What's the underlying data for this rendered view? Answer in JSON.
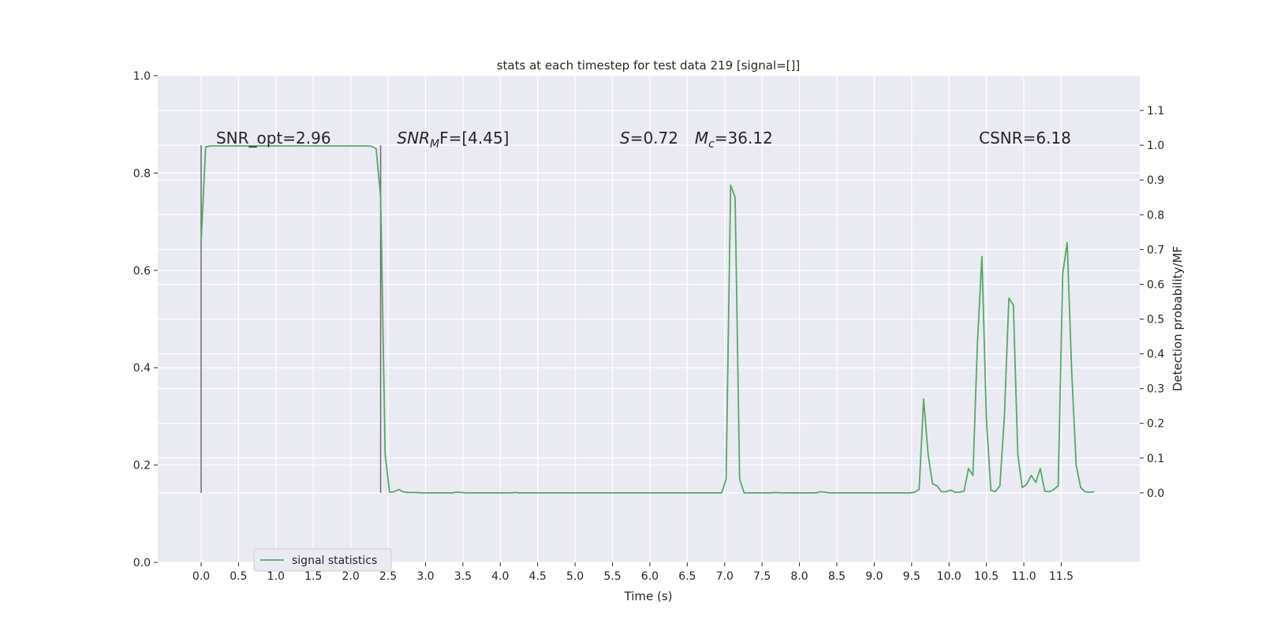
{
  "chart_data": {
    "type": "line",
    "title": "stats at each timestep for test data 219 [signal=[]]",
    "xlabel": "Time (s)",
    "ylabel_left": "",
    "ylabel_right": "Detection probability/MF",
    "xlim": [
      -0.58,
      12.55
    ],
    "ylim_left": [
      0.0,
      1.0
    ],
    "ylim_right": [
      -0.2,
      1.2
    ],
    "x_ticks": [
      "0.0",
      "0.5",
      "1.0",
      "1.5",
      "2.0",
      "2.5",
      "3.0",
      "3.5",
      "4.0",
      "4.5",
      "5.0",
      "5.5",
      "6.0",
      "6.5",
      "7.0",
      "7.5",
      "8.0",
      "8.5",
      "9.0",
      "9.5",
      "10.0",
      "10.5",
      "11.0",
      "11.5"
    ],
    "x_tick_values": [
      0.0,
      0.5,
      1.0,
      1.5,
      2.0,
      2.5,
      3.0,
      3.5,
      4.0,
      4.5,
      5.0,
      5.5,
      6.0,
      6.5,
      7.0,
      7.5,
      8.0,
      8.5,
      9.0,
      9.5,
      10.0,
      10.5,
      11.0,
      11.5
    ],
    "y_left_ticks": [
      "0.0",
      "0.2",
      "0.4",
      "0.6",
      "0.8",
      "1.0"
    ],
    "y_left_tick_values": [
      0.0,
      0.2,
      0.4,
      0.6,
      0.8,
      1.0
    ],
    "y_right_ticks": [
      "0.0",
      "0.1",
      "0.2",
      "0.3",
      "0.4",
      "0.5",
      "0.6",
      "0.7",
      "0.8",
      "0.9",
      "1.0",
      "1.1"
    ],
    "y_right_tick_values": [
      0.0,
      0.1,
      0.2,
      0.3,
      0.4,
      0.5,
      0.6,
      0.7,
      0.8,
      0.9,
      1.0,
      1.1
    ],
    "grid": true,
    "legend_placement": "lower-left",
    "series": [
      {
        "name": "signal statistics",
        "axis": "right",
        "color": "#55a868",
        "x": [
          0.0,
          0.06,
          0.12,
          0.18,
          0.24,
          0.3,
          0.36,
          0.42,
          0.48,
          0.54,
          0.6,
          0.66,
          0.72,
          0.78,
          0.84,
          0.9,
          0.96,
          1.02,
          1.08,
          1.14,
          1.2,
          1.26,
          1.32,
          1.38,
          1.44,
          1.5,
          1.56,
          1.62,
          1.68,
          1.74,
          1.8,
          1.86,
          1.92,
          1.98,
          2.04,
          2.1,
          2.16,
          2.22,
          2.28,
          2.34,
          2.4,
          2.46,
          2.52,
          2.58,
          2.64,
          2.7,
          2.76,
          2.82,
          2.88,
          2.94,
          3.0,
          3.06,
          3.12,
          3.18,
          3.24,
          3.3,
          3.36,
          3.42,
          3.48,
          3.54,
          3.6,
          3.66,
          3.72,
          3.78,
          3.84,
          3.9,
          3.96,
          4.02,
          4.08,
          4.14,
          4.2,
          4.26,
          4.32,
          4.38,
          4.44,
          4.5,
          4.56,
          4.62,
          4.68,
          4.74,
          4.8,
          4.86,
          4.92,
          4.98,
          5.04,
          5.1,
          5.16,
          5.22,
          5.28,
          5.34,
          5.4,
          5.46,
          5.52,
          5.58,
          5.64,
          5.7,
          5.76,
          5.82,
          5.88,
          5.94,
          6.0,
          6.06,
          6.12,
          6.18,
          6.24,
          6.3,
          6.36,
          6.42,
          6.48,
          6.54,
          6.6,
          6.66,
          6.72,
          6.78,
          6.84,
          6.9,
          6.96,
          7.02,
          7.08,
          7.14,
          7.2,
          7.26,
          7.32,
          7.38,
          7.44,
          7.5,
          7.56,
          7.62,
          7.68,
          7.74,
          7.8,
          7.86,
          7.92,
          7.98,
          8.04,
          8.1,
          8.16,
          8.22,
          8.28,
          8.34,
          8.4,
          8.46,
          8.52,
          8.58,
          8.64,
          8.7,
          8.76,
          8.82,
          8.88,
          8.94,
          9.0,
          9.06,
          9.12,
          9.18,
          9.24,
          9.3,
          9.36,
          9.42,
          9.48,
          9.54,
          9.6,
          9.66,
          9.72,
          9.78,
          9.84,
          9.9,
          9.96,
          10.02,
          10.08,
          10.14,
          10.2,
          10.26,
          10.32,
          10.38,
          10.44,
          10.5,
          10.56,
          10.62,
          10.68,
          10.74,
          10.8,
          10.86,
          10.92,
          10.98,
          11.04,
          11.1,
          11.16,
          11.22,
          11.28,
          11.34,
          11.4,
          11.46,
          11.52,
          11.58,
          11.64,
          11.7,
          11.76,
          11.82,
          11.88,
          11.94
        ],
        "y": [
          0.72,
          0.995,
          0.998,
          0.998,
          0.998,
          0.998,
          0.998,
          0.998,
          0.998,
          0.998,
          0.998,
          0.998,
          0.998,
          0.998,
          0.998,
          0.998,
          0.998,
          0.998,
          0.998,
          0.998,
          0.998,
          0.998,
          0.998,
          0.998,
          0.998,
          0.998,
          0.998,
          0.998,
          0.998,
          0.998,
          0.998,
          0.998,
          0.998,
          0.998,
          0.998,
          0.998,
          0.998,
          0.998,
          0.997,
          0.99,
          0.85,
          0.11,
          0.002,
          0.003,
          0.01,
          0.003,
          0.001,
          0.001,
          0.001,
          0.0,
          0.0,
          0.0,
          0.0,
          0.0,
          0.0,
          0.0,
          0.0,
          0.002,
          0.001,
          0.0,
          0.0,
          0.0,
          0.0,
          0.0,
          0.0,
          0.0,
          0.0,
          0.0,
          0.0,
          0.0,
          0.001,
          0.0,
          0.0,
          0.0,
          0.0,
          0.0,
          0.0,
          0.0,
          0.0,
          0.0,
          0.0,
          0.0,
          0.0,
          0.0,
          0.0,
          0.0,
          0.0,
          0.0,
          0.0,
          0.0,
          0.0,
          0.0,
          0.0,
          0.0,
          0.0,
          0.0,
          0.0,
          0.0,
          0.0,
          0.0,
          0.0,
          0.0,
          0.0,
          0.0,
          0.0,
          0.0,
          0.0,
          0.0,
          0.0,
          0.0,
          0.0,
          0.0,
          0.0,
          0.0,
          0.0,
          0.0,
          0.0,
          0.04,
          0.885,
          0.85,
          0.04,
          0.0,
          0.0,
          0.0,
          0.0,
          0.0,
          0.0,
          0.0,
          0.001,
          0.0,
          0.0,
          0.0,
          0.0,
          0.0,
          0.0,
          0.0,
          0.0,
          0.0,
          0.003,
          0.002,
          0.0,
          0.0,
          0.0,
          0.0,
          0.0,
          0.0,
          0.0,
          0.0,
          0.0,
          0.0,
          0.0,
          0.0,
          0.0,
          0.0,
          0.0,
          0.0,
          0.0,
          0.0,
          0.0,
          0.002,
          0.01,
          0.27,
          0.11,
          0.026,
          0.02,
          0.003,
          0.003,
          0.008,
          0.002,
          0.002,
          0.005,
          0.07,
          0.05,
          0.43,
          0.68,
          0.21,
          0.007,
          0.004,
          0.02,
          0.22,
          0.56,
          0.54,
          0.11,
          0.015,
          0.025,
          0.05,
          0.03,
          0.07,
          0.005,
          0.003,
          0.01,
          0.02,
          0.63,
          0.72,
          0.35,
          0.08,
          0.015,
          0.003,
          0.002,
          0.003
        ]
      }
    ],
    "vlines": [
      {
        "x": 0.0,
        "y_from": 0.0,
        "y_to": 1.0,
        "color": "#6b6b6b"
      },
      {
        "x": 2.4,
        "y_from": 0.0,
        "y_to": 1.0,
        "color": "#6b6b6b"
      }
    ],
    "annotations": [
      {
        "text": "SNR_opt=2.96",
        "x": 0.2,
        "y": 1.0
      },
      {
        "text_main": "SNR",
        "text_sub": "M",
        "text_rest": "F=[4.45]",
        "x": 2.62,
        "y": 1.0
      },
      {
        "text_main": "S",
        "text_rest": "=0.72",
        "x": 5.6,
        "y": 1.0
      },
      {
        "text_main": "M",
        "text_sub": "c",
        "text_rest": "=36.12",
        "x": 6.6,
        "y": 1.0
      },
      {
        "text": "CSNR=6.18",
        "x": 10.4,
        "y": 1.0
      }
    ],
    "legend": {
      "label": "signal statistics"
    }
  }
}
